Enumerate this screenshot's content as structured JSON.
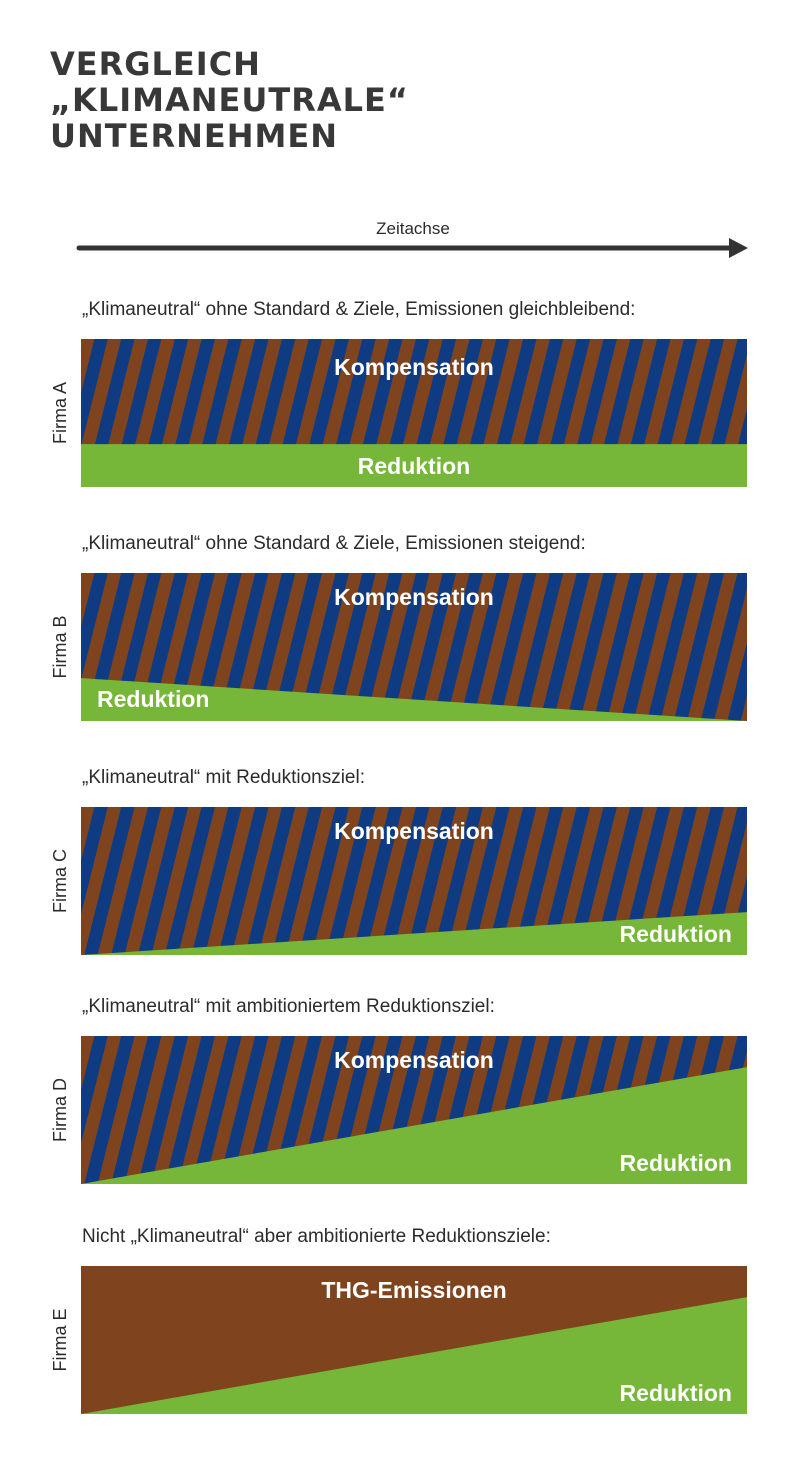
{
  "title": {
    "line1": "VERGLEICH",
    "line2": "„KLIMANEUTRALE“",
    "line3": "UNTERNEHMEN"
  },
  "axis": {
    "label": "Zeitachse"
  },
  "colors": {
    "compensation_stripe_brown": "#7f441d",
    "compensation_stripe_blue": "#0f3b82",
    "reduction_green": "#76b638",
    "emissions_brown": "#7f441d"
  },
  "firms": [
    {
      "label": "Firma A",
      "caption": "„Klimaneutral“ ohne Standard & Ziele, Emissionen gleichbleibend:",
      "upper_label": "Kompensation",
      "lower_label": "Reduktion",
      "upper_fill": "stripes",
      "reduction_share_start": 0.29,
      "reduction_share_end": 0.29
    },
    {
      "label": "Firma B",
      "caption": "„Klimaneutral“ ohne Standard & Ziele, Emissionen steigend:",
      "upper_label": "Kompensation",
      "lower_label": "Reduktion",
      "upper_fill": "stripes",
      "reduction_share_start": 0.29,
      "reduction_share_end": 0.0
    },
    {
      "label": "Firma C",
      "caption": "„Klimaneutral“ mit Reduktionsziel:",
      "upper_label": "Kompensation",
      "lower_label": "Reduktion",
      "upper_fill": "stripes",
      "reduction_share_start": 0.0,
      "reduction_share_end": 0.29
    },
    {
      "label": "Firma D",
      "caption": "„Klimaneutral“ mit ambitioniertem Reduktionsziel:",
      "upper_label": "Kompensation",
      "lower_label": "Reduktion",
      "upper_fill": "stripes",
      "reduction_share_start": 0.0,
      "reduction_share_end": 0.79
    },
    {
      "label": "Firma E",
      "caption": "Nicht „Klimaneutral“ aber ambitionierte Reduktionsziele:",
      "upper_label": "THG-Emissionen",
      "lower_label": "Reduktion",
      "upper_fill": "solid",
      "reduction_share_start": 0.0,
      "reduction_share_end": 0.79
    }
  ]
}
